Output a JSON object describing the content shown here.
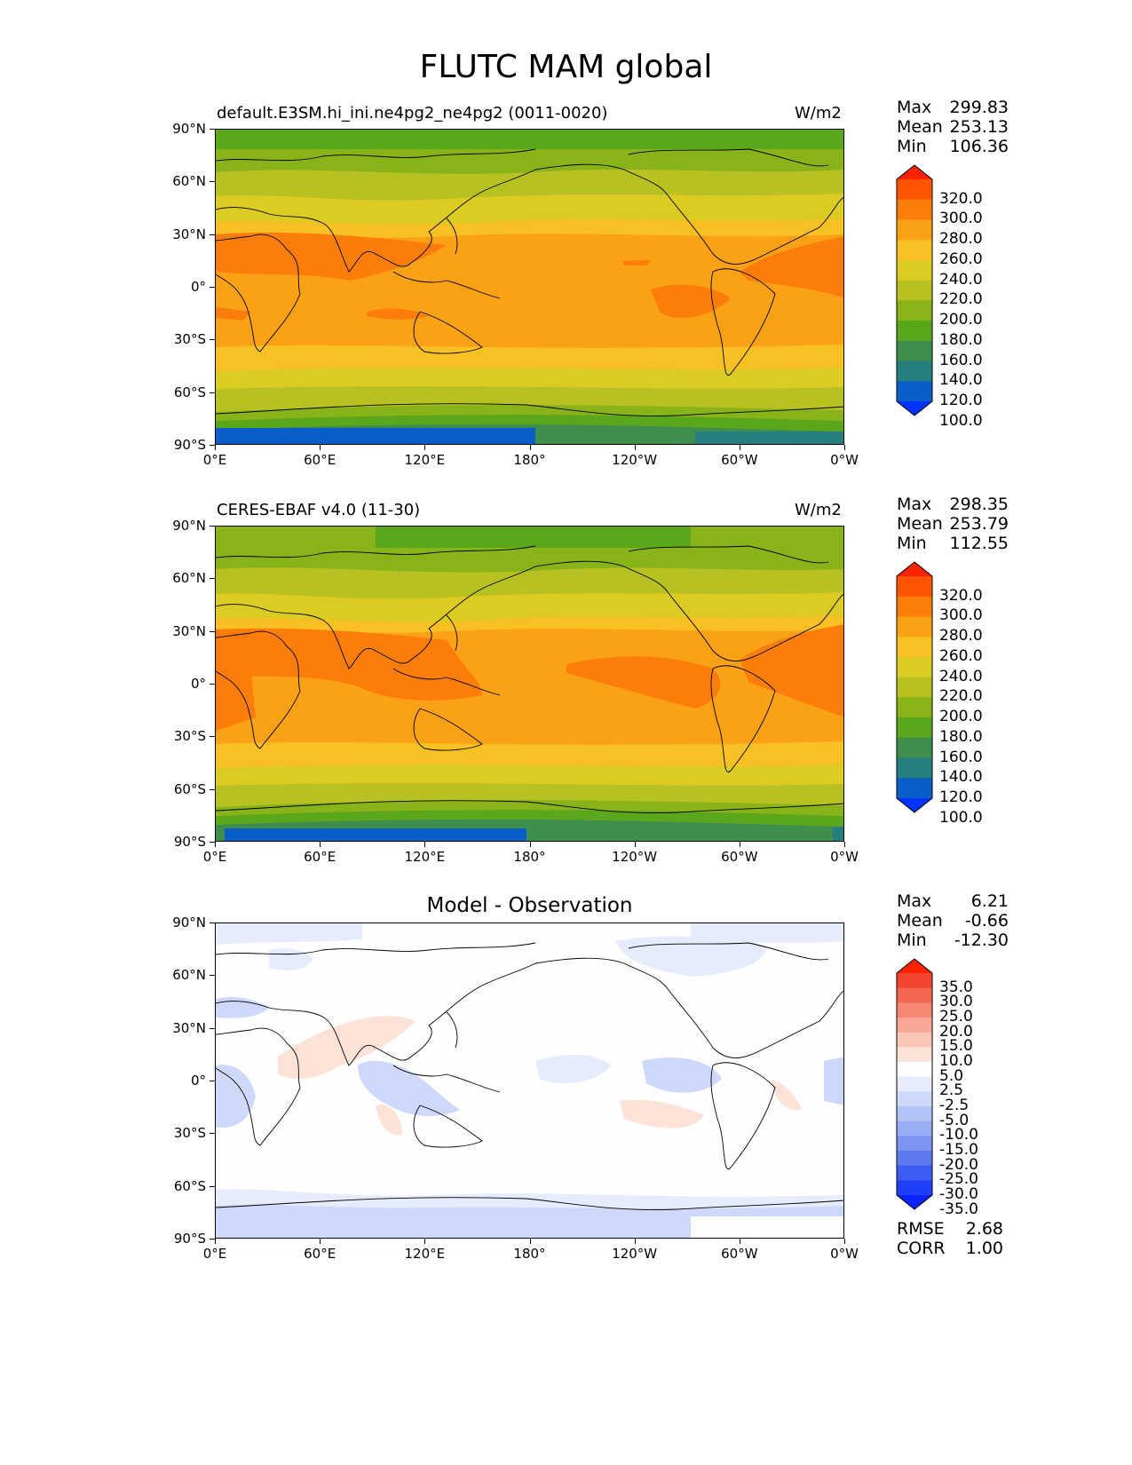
{
  "title": "FLUTC MAM global",
  "lat_ticks": [
    "90°N",
    "60°N",
    "30°N",
    "0°",
    "30°S",
    "60°S",
    "90°S"
  ],
  "lon_ticks": [
    "0°E",
    "60°E",
    "120°E",
    "180°",
    "120°W",
    "60°W",
    "0°W"
  ],
  "panels": [
    {
      "label": "default.E3SM.hi_ini.ne4pg2_ne4pg2 (0011-0020)",
      "units": "W/m2",
      "stats": [
        {
          "k": "Max",
          "v": "299.83"
        },
        {
          "k": "Mean",
          "v": "253.13"
        },
        {
          "k": "Min",
          "v": "106.36"
        }
      ],
      "colorbar_labels": [
        "320.0",
        "300.0",
        "280.0",
        "260.0",
        "240.0",
        "220.0",
        "200.0",
        "180.0",
        "160.0",
        "140.0",
        "120.0",
        "100.0"
      ]
    },
    {
      "label": "CERES-EBAF v4.0 (11-30)",
      "units": "W/m2",
      "stats": [
        {
          "k": "Max",
          "v": "298.35"
        },
        {
          "k": "Mean",
          "v": "253.79"
        },
        {
          "k": "Min",
          "v": "112.55"
        }
      ],
      "colorbar_labels": [
        "320.0",
        "300.0",
        "280.0",
        "260.0",
        "240.0",
        "220.0",
        "200.0",
        "180.0",
        "160.0",
        "140.0",
        "120.0",
        "100.0"
      ]
    },
    {
      "title": "Model - Observation",
      "stats": [
        {
          "k": "Max",
          "v": "6.21"
        },
        {
          "k": "Mean",
          "v": "-0.66"
        },
        {
          "k": "Min",
          "v": "-12.30"
        }
      ],
      "colorbar_labels": [
        "35.0",
        "30.0",
        "25.0",
        "20.0",
        "15.0",
        "10.0",
        "5.0",
        "2.5",
        "-2.5",
        "-5.0",
        "-10.0",
        "-15.0",
        "-20.0",
        "-25.0",
        "-30.0",
        "-35.0"
      ],
      "metrics": [
        {
          "k": "RMSE",
          "v": "2.68"
        },
        {
          "k": "CORR",
          "v": "1.00"
        }
      ]
    }
  ],
  "colors": {
    "abs_scale": [
      "#ff2200",
      "#ff5500",
      "#fc7d0a",
      "#faa115",
      "#f8c022",
      "#dccb23",
      "#b7c222",
      "#88b41a",
      "#5aa71c",
      "#3e8e4c",
      "#267f7f",
      "#0a5ec7",
      "#0033ff"
    ],
    "diff_scale": [
      "#ff2200",
      "#f4432e",
      "#f56650",
      "#f78772",
      "#f9a796",
      "#fbc6b8",
      "#fde2d8",
      "#fefefe",
      "#e6ecfc",
      "#cdd8fa",
      "#b2c3f7",
      "#97aef4",
      "#7b94f1",
      "#5e7af0",
      "#3f5cf2",
      "#2040f8",
      "#0a22ff"
    ]
  }
}
